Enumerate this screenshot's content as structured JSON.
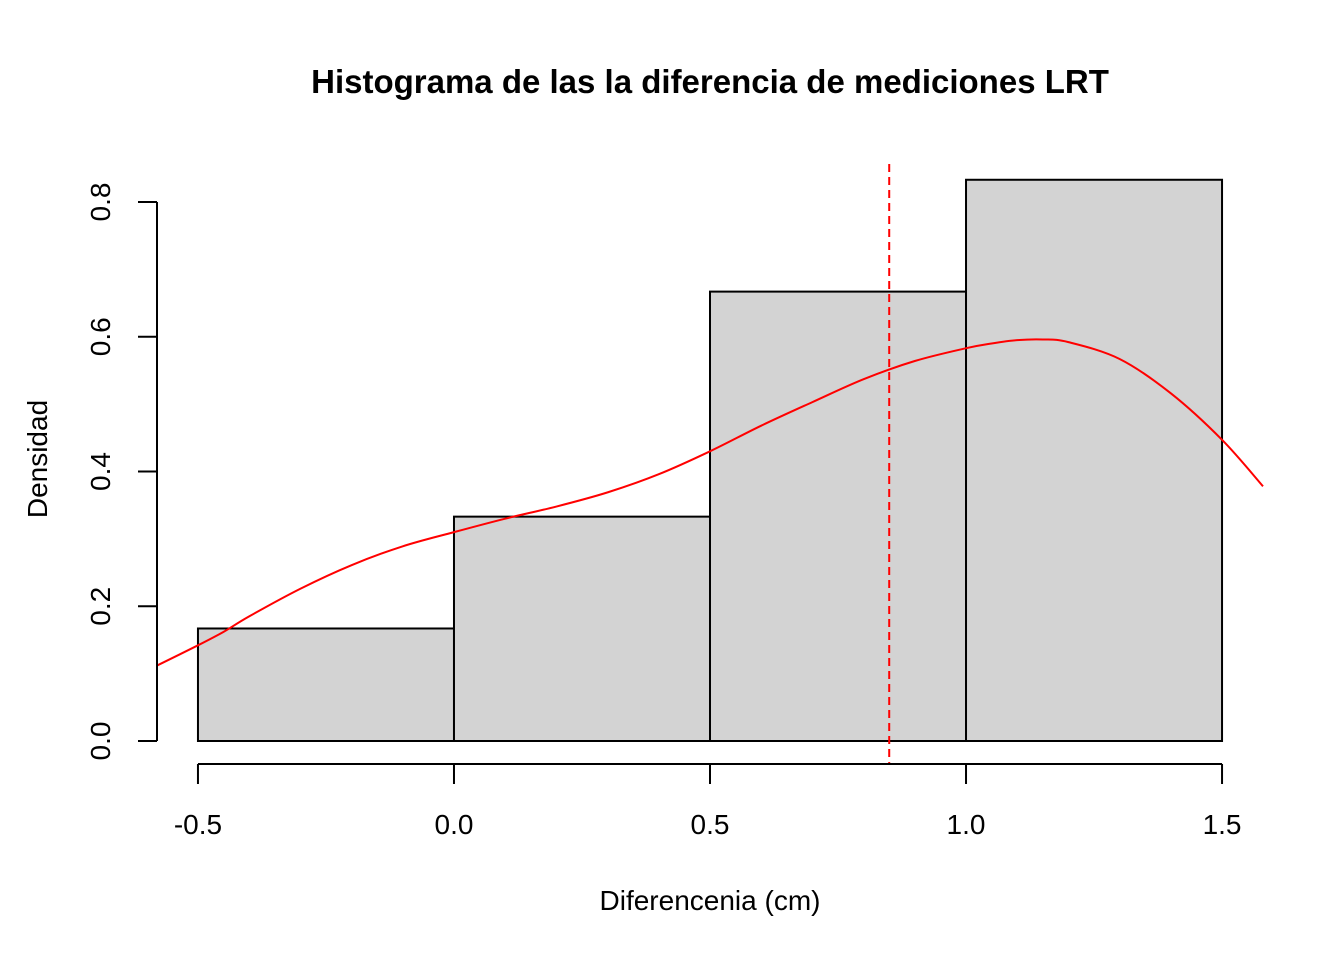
{
  "chart_data": {
    "type": "bar",
    "title": "Histograma de las la diferencia de mediciones LRT",
    "xlabel": "Diferencenia (cm)",
    "ylabel": "Densidad",
    "xlim": [
      -0.58,
      1.58
    ],
    "ylim": [
      0,
      0.8
    ],
    "x_ticks": [
      {
        "value": -0.5,
        "label": "-0.5"
      },
      {
        "value": 0.0,
        "label": "0.0"
      },
      {
        "value": 0.5,
        "label": "0.5"
      },
      {
        "value": 1.0,
        "label": "1.0"
      },
      {
        "value": 1.5,
        "label": "1.5"
      }
    ],
    "y_ticks": [
      {
        "value": 0.0,
        "label": "0.0"
      },
      {
        "value": 0.2,
        "label": "0.2"
      },
      {
        "value": 0.4,
        "label": "0.4"
      },
      {
        "value": 0.6,
        "label": "0.6"
      },
      {
        "value": 0.8,
        "label": "0.8"
      }
    ],
    "bins": [
      {
        "start": -0.5,
        "end": 0.0,
        "density": 0.167
      },
      {
        "start": 0.0,
        "end": 0.5,
        "density": 0.333
      },
      {
        "start": 0.5,
        "end": 1.0,
        "density": 0.667
      },
      {
        "start": 1.0,
        "end": 1.5,
        "density": 0.833
      }
    ],
    "density_curve": {
      "x": [
        -0.58,
        -0.5,
        -0.45,
        -0.4,
        -0.3,
        -0.2,
        -0.1,
        0.0,
        0.1,
        0.2,
        0.3,
        0.4,
        0.5,
        0.6,
        0.7,
        0.8,
        0.9,
        1.0,
        1.05,
        1.1,
        1.15,
        1.2,
        1.3,
        1.4,
        1.5,
        1.58
      ],
      "y": [
        0.112,
        0.142,
        0.162,
        0.185,
        0.226,
        0.261,
        0.289,
        0.31,
        0.33,
        0.348,
        0.369,
        0.396,
        0.43,
        0.468,
        0.503,
        0.537,
        0.564,
        0.583,
        0.59,
        0.595,
        0.596,
        0.592,
        0.567,
        0.516,
        0.447,
        0.378
      ]
    },
    "vline": {
      "x": 0.85,
      "style": "dashed"
    },
    "colors": {
      "bar_fill": "#d3d3d3",
      "bar_stroke": "#000000",
      "curve": "#ff0000",
      "vline": "#ff0000"
    },
    "grid": false,
    "legend": "none"
  }
}
